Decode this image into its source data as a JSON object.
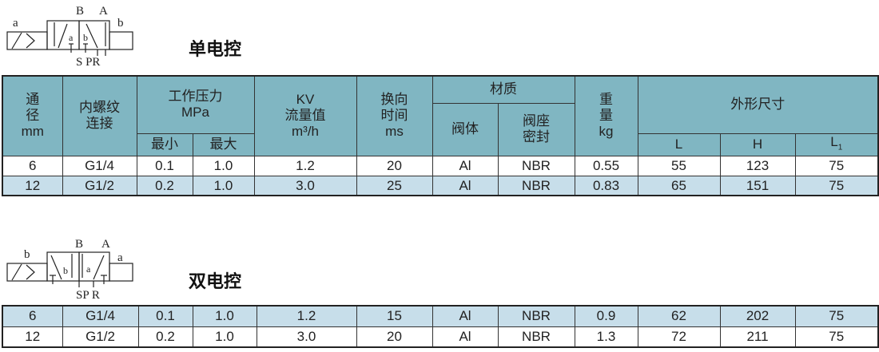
{
  "single": {
    "title": "单电控",
    "symbol": {
      "left": "a",
      "right": "b",
      "top": [
        "B",
        "A"
      ],
      "mid": [
        "a",
        "b"
      ],
      "bottom": "S PR"
    },
    "headers": {
      "bore": [
        "通",
        "径",
        "mm"
      ],
      "thread": [
        "内螺纹",
        "连接"
      ],
      "pressure": "工作压力",
      "pressure_unit": "MPa",
      "min": "最小",
      "max": "最大",
      "kv": "KV",
      "kv_label": "流量值",
      "kv_unit": "m³/h",
      "switch": [
        "换向",
        "时间",
        "ms"
      ],
      "material": "材质",
      "body": "阀体",
      "seal": [
        "阀座",
        "密封"
      ],
      "weight": [
        "重",
        "量",
        "kg"
      ],
      "dims": "外形尺寸",
      "L": "L",
      "H": "H",
      "L1": "L",
      "L1_sub": "1"
    },
    "rows": [
      [
        "6",
        "G1/4",
        "0.1",
        "1.0",
        "1.2",
        "20",
        "Al",
        "NBR",
        "0.55",
        "55",
        "123",
        "75"
      ],
      [
        "12",
        "G1/2",
        "0.2",
        "1.0",
        "3.0",
        "25",
        "Al",
        "NBR",
        "0.83",
        "65",
        "151",
        "75"
      ]
    ]
  },
  "double": {
    "title": "双电控",
    "symbol": {
      "left": "b",
      "right": "a",
      "top": [
        "B",
        "A"
      ],
      "mid": [
        "b",
        "a"
      ],
      "bottom": "SP R"
    },
    "rows": [
      [
        "6",
        "G1/4",
        "0.1",
        "1.0",
        "1.2",
        "15",
        "Al",
        "NBR",
        "0.9",
        "62",
        "202",
        "75"
      ],
      [
        "12",
        "G1/2",
        "0.2",
        "1.0",
        "3.0",
        "20",
        "Al",
        "NBR",
        "1.3",
        "72",
        "211",
        "75"
      ]
    ]
  }
}
